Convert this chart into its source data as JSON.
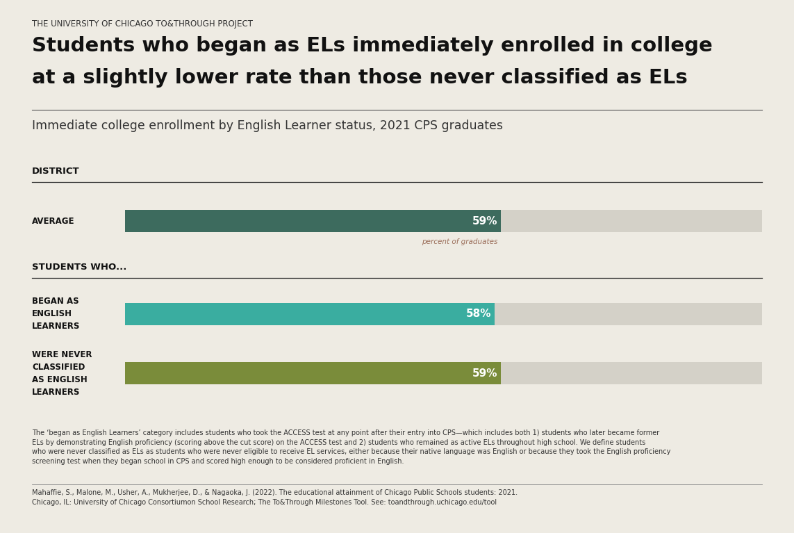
{
  "bg_color": "#eeebe3",
  "top_label": "THE UNIVERSITY OF CHICAGO TO&THROUGH PROJECT",
  "title_line1": "Students who began as ELs immediately enrolled in college",
  "title_line2": "at a slightly lower rate than those never classified as ELs",
  "subtitle": "Immediate college enrollment by English Learner status, 2021 CPS graduates",
  "section1_label": "DISTRICT",
  "section2_label": "STUDENTS WHO...",
  "bars": [
    {
      "label": "AVERAGE",
      "value": 59,
      "bar_color_filled": "#3d6b5e",
      "bar_color_empty": "#d4d1c8"
    },
    {
      "label": "BEGAN AS\nENGLISH\nLEARNERS",
      "value": 58,
      "bar_color_filled": "#3aada0",
      "bar_color_empty": "#d4d1c8"
    },
    {
      "label": "WERE NEVER\nCLASSIFIED\nAS ENGLISH\nLEARNERS",
      "value": 59,
      "bar_color_filled": "#7a8c3a",
      "bar_color_empty": "#d4d1c8"
    }
  ],
  "percent_label": "percent of graduates",
  "percent_label_color": "#9b6e5a",
  "footnote_line1": "The ‘began as English Learners’ category includes students who took the ACCESS test at any point after their entry into CPS—which includes both 1) students who later became former",
  "footnote_line2": "ELs by demonstrating English proficiency (scoring above the cut score) on the ACCESS test and 2) students who remained as active ELs throughout high school. We define students",
  "footnote_line3": "who were never classified as ELs as students who were never eligible to receive EL services, either because their native language was English or because they took the English proficiency",
  "footnote_line4": "screening test when they began school in CPS and scored high enough to be considered proficient in English.",
  "citation_line1": "Mahaffie, S., Malone, M., Usher, A., Mukherjee, D., & Nagaoka, J. (2022). ​The educational attainment of Chicago Public Schools students: 2021.",
  "citation_line2": "Chicago, IL: University of Chicago Consortiumon School Research; The To&Through Milestones Tool. See: toandthrough.uchicago.edu/tool"
}
